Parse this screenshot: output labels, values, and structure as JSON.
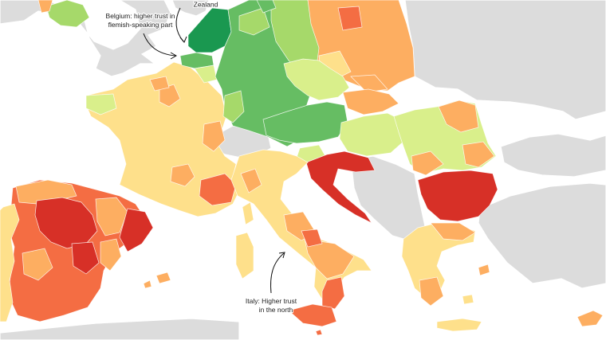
{
  "map": {
    "annotations": {
      "top_fragment": "Zealand",
      "belgium_line1": "Belgium: higher trust in",
      "belgium_line2": "flemish-speaking part",
      "italy_line1": "Italy: Higher trust",
      "italy_line2": "in the north"
    },
    "colors": {
      "background_sea": "#ffffff",
      "no_data": "#dcdcdc",
      "trust_very_high": "#1a9850",
      "trust_high": "#66bd63",
      "trust_above_mid": "#a6d96a",
      "trust_mid": "#d9ef8b",
      "trust_below_mid": "#fee08b",
      "trust_low": "#fdae61",
      "trust_lower": "#f46d43",
      "trust_very_low": "#d73027"
    }
  }
}
